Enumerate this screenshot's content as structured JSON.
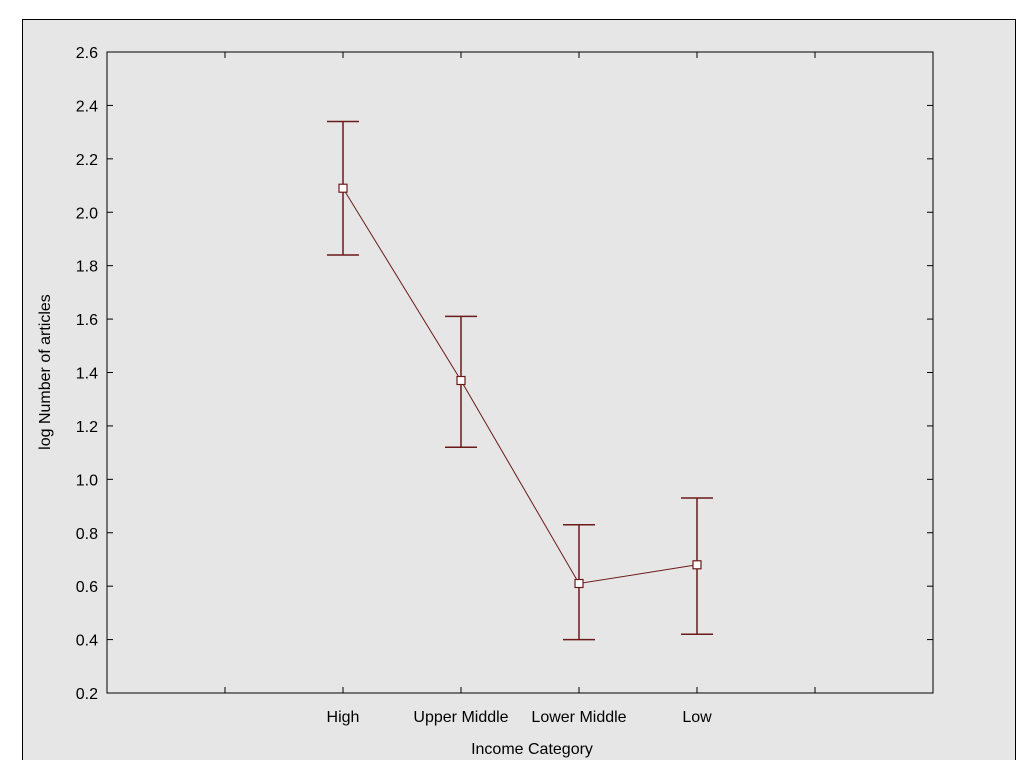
{
  "chart_data": {
    "type": "line",
    "xlabel": "Income Category",
    "ylabel": "log Number of articles",
    "categories": [
      "High",
      "Upper Middle",
      "Lower Middle",
      "Low"
    ],
    "series": [
      {
        "values": [
          2.09,
          1.37,
          0.61,
          0.68
        ],
        "error_low": [
          1.84,
          1.12,
          0.4,
          0.42
        ],
        "error_high": [
          2.34,
          1.61,
          0.83,
          0.93
        ]
      }
    ],
    "ylim": [
      0.2,
      2.6
    ],
    "yticks": [
      "0.2",
      "0.4",
      "0.6",
      "0.8",
      "1.0",
      "1.2",
      "1.4",
      "1.6",
      "1.8",
      "2.0",
      "2.2",
      "2.4",
      "2.6"
    ],
    "grid": false,
    "legend": "none",
    "colors": {
      "series": "#6b1a1a",
      "marker_fill": "#ffffff",
      "background": "#e6e6e6"
    }
  }
}
